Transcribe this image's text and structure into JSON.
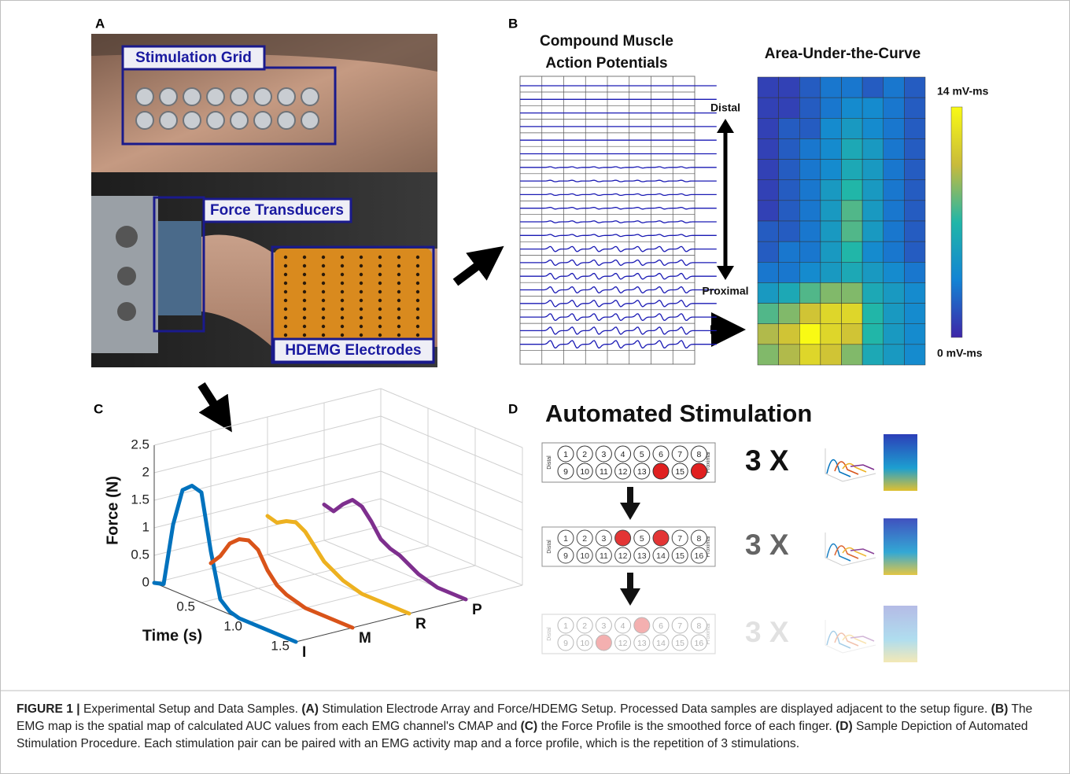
{
  "panel_labels": [
    "A",
    "B",
    "C",
    "D"
  ],
  "panel_a": {
    "callouts": [
      "Stimulation Grid",
      "Force Transducers",
      "HDEMG Electrodes"
    ]
  },
  "panel_b": {
    "cmap_title": [
      "Compound Muscle",
      "Action Potentials"
    ],
    "distal": "Distal",
    "proximal": "Proximal",
    "auc_title": "Area-Under-the-Curve",
    "colorbar_max_label": "14 mV-ms",
    "colorbar_min_label": "0 mV-ms",
    "clim": [
      0,
      14
    ],
    "auc_values": [
      [
        1,
        1,
        2,
        3,
        3,
        2,
        3,
        2
      ],
      [
        1,
        1,
        2,
        3,
        4,
        4,
        3,
        2
      ],
      [
        1,
        2,
        2,
        4,
        5,
        4,
        3,
        2
      ],
      [
        1,
        2,
        3,
        4,
        6,
        5,
        3,
        2
      ],
      [
        1,
        2,
        3,
        4,
        6,
        5,
        3,
        2
      ],
      [
        1,
        2,
        3,
        5,
        7,
        5,
        3,
        2
      ],
      [
        1,
        2,
        3,
        5,
        8,
        5,
        3,
        2
      ],
      [
        2,
        2,
        3,
        5,
        8,
        5,
        3,
        2
      ],
      [
        2,
        3,
        3,
        5,
        7,
        4,
        3,
        2
      ],
      [
        3,
        3,
        4,
        5,
        6,
        5,
        4,
        3
      ],
      [
        5,
        6,
        8,
        9,
        9,
        6,
        5,
        4
      ],
      [
        8,
        9,
        11,
        12,
        12,
        7,
        5,
        4
      ],
      [
        10,
        11,
        14,
        12,
        11,
        7,
        5,
        4
      ],
      [
        9,
        10,
        12,
        11,
        9,
        6,
        5,
        4
      ]
    ]
  },
  "panel_c": {
    "ylabel": "Force (N)",
    "xlabel": "Time (s)",
    "ylim": [
      0,
      2.5
    ],
    "yticks": [
      0,
      0.5,
      1,
      1.5,
      2,
      2.5
    ],
    "xlim": [
      0,
      1.5
    ],
    "xticks": [
      0.5,
      {
        "value": 1.0,
        "label": "1.0"
      },
      1.5
    ],
    "x": [
      0,
      0.1,
      0.2,
      0.3,
      0.4,
      0.5,
      0.6,
      0.7,
      0.8,
      0.9,
      1.0,
      1.1,
      1.2,
      1.3,
      1.4,
      1.5
    ],
    "series": [
      {
        "name": "I",
        "color": "#0072bd",
        "values": [
          0,
          0.05,
          1.2,
          1.9,
          2.05,
          2.0,
          1.0,
          0.2,
          0.05,
          0,
          0,
          0,
          0,
          0,
          0,
          0
        ]
      },
      {
        "name": "M",
        "color": "#d95319",
        "values": [
          0.1,
          0.3,
          0.6,
          0.75,
          0.8,
          0.7,
          0.4,
          0.2,
          0.1,
          0.05,
          0,
          0,
          0,
          0,
          0,
          0
        ]
      },
      {
        "name": "R",
        "color": "#edb120",
        "values": [
          0.7,
          0.65,
          0.75,
          0.8,
          0.7,
          0.5,
          0.3,
          0.2,
          0.1,
          0.05,
          0,
          0,
          0,
          0,
          0,
          0
        ]
      },
      {
        "name": "P",
        "color": "#7e2f8e",
        "values": [
          0.65,
          0.6,
          0.8,
          0.95,
          0.9,
          0.7,
          0.45,
          0.35,
          0.3,
          0.2,
          0.1,
          0.05,
          0,
          0,
          0,
          0
        ]
      }
    ]
  },
  "panel_d": {
    "title": "Automated Stimulation",
    "distal": "Distal",
    "proximal": "Proximal",
    "electrodes": [
      "1",
      "2",
      "3",
      "4",
      "5",
      "6",
      "7",
      "8",
      "9",
      "10",
      "11",
      "12",
      "13",
      "14",
      "15",
      "16"
    ],
    "rows": [
      {
        "label": "3 X",
        "stimulated": [
          14,
          16
        ]
      },
      {
        "label": "3 X",
        "stimulated": [
          4,
          6
        ]
      },
      {
        "label": "3 X",
        "stimulated": [
          5,
          11
        ]
      }
    ]
  },
  "caption": [
    {
      "text": "FIGURE 1 |",
      "bold": true
    },
    {
      "text": " Experimental Setup and Data Samples. ",
      "bold": false
    },
    {
      "text": "(A)",
      "bold": true
    },
    {
      "text": " Stimulation Electrode Array and Force/HDEMG Setup. Processed Data samples are displayed adjacent to the setup figure. ",
      "bold": false
    },
    {
      "text": "(B)",
      "bold": true
    },
    {
      "text": " The EMG map is the spatial map of calculated AUC values from each EMG channel's CMAP and ",
      "bold": false
    },
    {
      "text": "(C)",
      "bold": true
    },
    {
      "text": " the Force Profile is the smoothed force of each finger. ",
      "bold": false
    },
    {
      "text": "(D)",
      "bold": true
    },
    {
      "text": " Sample Depiction of Automated Stimulation Procedure. Each stimulation pair can be paired with an EMG activity map and a force profile, which is the repetition of 3 stimulations.",
      "bold": false
    }
  ]
}
